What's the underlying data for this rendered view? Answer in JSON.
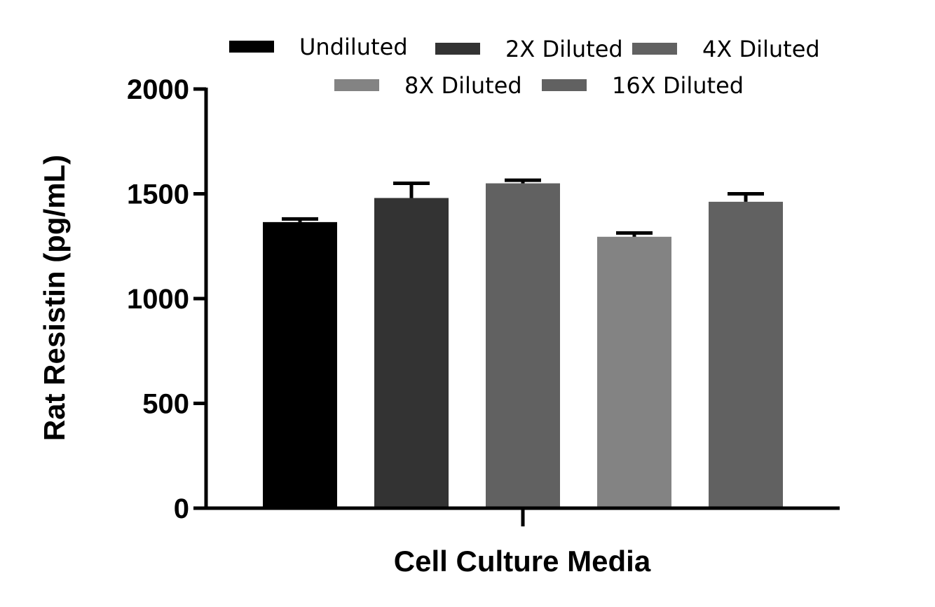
{
  "chart_data": {
    "type": "bar",
    "title": "",
    "xlabel": "Cell Culture Media",
    "ylabel": "Rat Resistin (pg/mL)",
    "ylim": [
      0,
      2000
    ],
    "yticks": [
      0,
      500,
      1000,
      1500,
      2000
    ],
    "category": "Cell Culture Media",
    "legend_position": "top",
    "grid": false,
    "error_bars": true,
    "series": [
      {
        "name": "Undiluted",
        "value": 1365,
        "error": 15,
        "color": "#000000"
      },
      {
        "name": "2X Diluted",
        "value": 1480,
        "error": 70,
        "color": "#333333"
      },
      {
        "name": "4X Diluted",
        "value": 1550,
        "error": 15,
        "color": "#616161"
      },
      {
        "name": "8X Diluted",
        "value": 1295,
        "error": 18,
        "color": "#838383"
      },
      {
        "name": "16X Diluted",
        "value": 1462,
        "error": 38,
        "color": "#616161"
      }
    ]
  }
}
